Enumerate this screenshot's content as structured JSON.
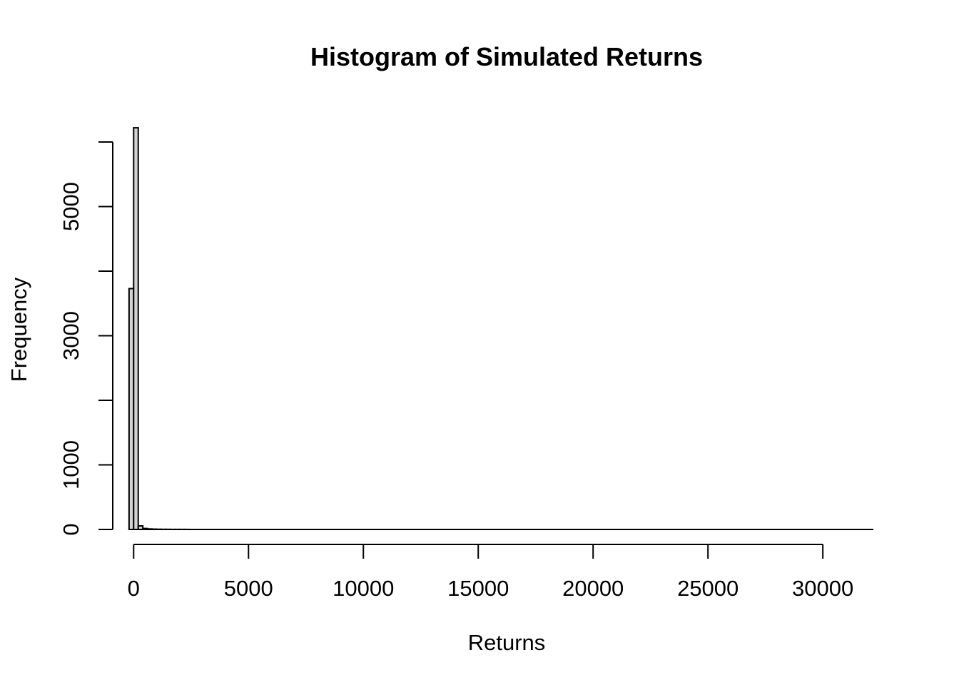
{
  "chart_data": {
    "type": "bar",
    "title": "Histogram of Simulated Returns",
    "xlabel": "Returns",
    "ylabel": "Frequency",
    "xlim": [
      -1500,
      32200
    ],
    "ylim": [
      0,
      6000
    ],
    "x_ticks": [
      0,
      5000,
      10000,
      15000,
      20000,
      25000,
      30000
    ],
    "x_tick_labels": [
      "0",
      "5000",
      "10000",
      "15000",
      "20000",
      "25000",
      "30000"
    ],
    "y_ticks": [
      0,
      1000,
      2000,
      3000,
      4000,
      5000,
      6000
    ],
    "y_tick_labels": [
      "0",
      "1000",
      "",
      "3000",
      "",
      "5000",
      ""
    ],
    "bin_width": 200,
    "bins": [
      {
        "start": -200,
        "end": 0,
        "count": 3730
      },
      {
        "start": 0,
        "end": 200,
        "count": 6220
      },
      {
        "start": 200,
        "end": 400,
        "count": 55
      },
      {
        "start": 400,
        "end": 600,
        "count": 15
      },
      {
        "start": 600,
        "end": 800,
        "count": 8
      },
      {
        "start": 800,
        "end": 1000,
        "count": 5
      },
      {
        "start": 1000,
        "end": 1200,
        "count": 3
      },
      {
        "start": 1200,
        "end": 1400,
        "count": 2
      },
      {
        "start": 1400,
        "end": 1600,
        "count": 2
      },
      {
        "start": 1600,
        "end": 1800,
        "count": 1
      },
      {
        "start": 1800,
        "end": 2000,
        "count": 1
      },
      {
        "start": 2000,
        "end": 2200,
        "count": 1
      },
      {
        "start": 2200,
        "end": 2400,
        "count": 1
      },
      {
        "start": 2400,
        "end": 32200,
        "count": 0
      }
    ],
    "grid": false,
    "legend": "none"
  }
}
